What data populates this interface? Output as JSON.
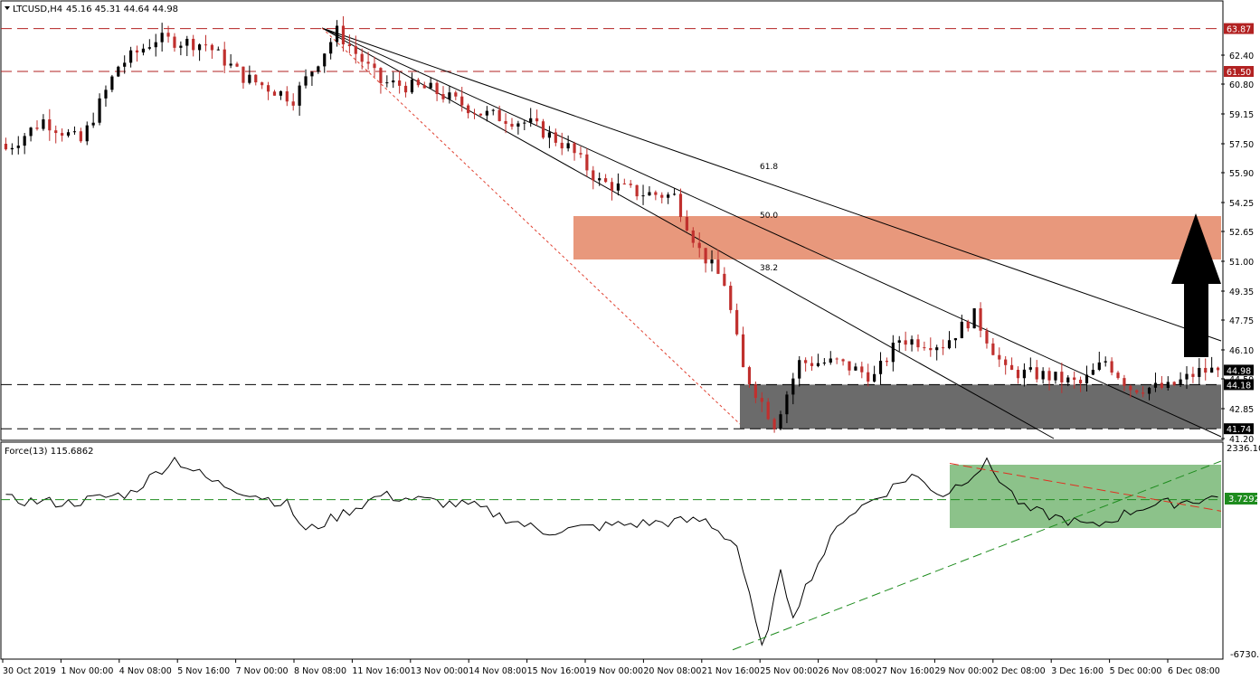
{
  "header": {
    "symbol_label": "LTCUSD,H4",
    "ohlc_label": "45.16 45.31 44.64 44.98"
  },
  "indicator": {
    "label": "Force(13) 115.6862",
    "axis_max_label": "2336.102",
    "axis_min_label": "-6730.05",
    "level_label": "3.7292"
  },
  "colors": {
    "bull_candle": "#000000",
    "bear_candle": "#c0302e",
    "resistance_zone": "#e8987c",
    "support_zone": "#6b6b6b",
    "force_zone": "#8cc28a",
    "price_label_red": "#b22222",
    "level_dash": "#000000",
    "force_trend_up": "#1e8c1e",
    "force_trend_down": "#e03020",
    "arrow": "#000000"
  },
  "chart_data": [
    {
      "type": "candlestick",
      "title": "LTCUSD,H4",
      "ylim": [
        41.2,
        64.55
      ],
      "y_ticks": [
        "62.40",
        "60.80",
        "59.15",
        "57.50",
        "55.90",
        "54.25",
        "52.65",
        "51.00",
        "49.35",
        "47.75",
        "46.10",
        "44.50",
        "42.85",
        "41.20"
      ],
      "x_ticks": [
        "30 Oct 2019",
        "1 Nov 00:00",
        "4 Nov 08:00",
        "5 Nov 16:00",
        "7 Nov 00:00",
        "8 Nov 08:00",
        "11 Nov 16:00",
        "13 Nov 00:00",
        "14 Nov 08:00",
        "15 Nov 16:00",
        "19 Nov 00:00",
        "20 Nov 08:00",
        "21 Nov 16:00",
        "25 Nov 00:00",
        "26 Nov 08:00",
        "27 Nov 16:00",
        "29 Nov 00:00",
        "2 Dec 08:00",
        "3 Dec 16:00",
        "5 Dec 00:00",
        "6 Dec 08:00"
      ],
      "horizontal_levels": [
        {
          "label": "63.87",
          "value": 63.87,
          "style": "red-dash"
        },
        {
          "label": "61.50",
          "value": 61.5,
          "style": "red-dash"
        },
        {
          "label": "44.18",
          "value": 44.18,
          "style": "black-dash"
        },
        {
          "label": "41.74",
          "value": 41.74,
          "style": "black-dash"
        }
      ],
      "current_price_label": "44.98",
      "zones": [
        {
          "name": "resistance",
          "y_from": 51.1,
          "y_to": 53.5
        },
        {
          "name": "support",
          "y_from": 41.74,
          "y_to": 44.18
        }
      ],
      "fibonacci_fan": {
        "levels": [
          "61.8",
          "50.0",
          "38.2"
        ]
      },
      "ohlc_key_points": [
        {
          "bar": 0,
          "close": 57.2
        },
        {
          "bar": 6,
          "close": 58.8
        },
        {
          "bar": 12,
          "close": 57.6
        },
        {
          "bar": 18,
          "close": 61.8
        },
        {
          "bar": 24,
          "close": 63.3
        },
        {
          "bar": 32,
          "close": 63.0
        },
        {
          "bar": 38,
          "close": 61.2
        },
        {
          "bar": 46,
          "close": 60.0
        },
        {
          "bar": 53,
          "close": 63.7
        },
        {
          "bar": 60,
          "close": 60.9
        },
        {
          "bar": 68,
          "close": 60.5
        },
        {
          "bar": 76,
          "close": 59.2
        },
        {
          "bar": 84,
          "close": 58.6
        },
        {
          "bar": 90,
          "close": 57.3
        },
        {
          "bar": 95,
          "close": 55.4
        },
        {
          "bar": 101,
          "close": 54.8
        },
        {
          "bar": 107,
          "close": 54.6
        },
        {
          "bar": 111,
          "close": 51.6
        },
        {
          "bar": 115,
          "close": 49.8
        },
        {
          "bar": 118,
          "close": 45.0
        },
        {
          "bar": 123,
          "close": 42.0
        },
        {
          "bar": 127,
          "close": 45.4
        },
        {
          "bar": 133,
          "close": 45.4
        },
        {
          "bar": 139,
          "close": 44.6
        },
        {
          "bar": 143,
          "close": 46.7
        },
        {
          "bar": 150,
          "close": 46.4
        },
        {
          "bar": 155,
          "close": 48.0
        },
        {
          "bar": 160,
          "close": 44.9
        },
        {
          "bar": 166,
          "close": 44.7
        },
        {
          "bar": 172,
          "close": 44.2
        },
        {
          "bar": 176,
          "close": 45.5
        },
        {
          "bar": 180,
          "close": 44.0
        },
        {
          "bar": 186,
          "close": 44.0
        },
        {
          "bar": 191,
          "close": 44.9
        },
        {
          "bar": 194,
          "close": 44.98
        }
      ]
    },
    {
      "type": "line",
      "title": "Force(13) 115.6862",
      "ylim": [
        -6730.05,
        2336.102
      ],
      "level": 3.7292,
      "y_ticks": [
        "2336.102",
        "-6730.05"
      ],
      "key_points": [
        {
          "bar": 0,
          "value": 0
        },
        {
          "bar": 10,
          "value": -150
        },
        {
          "bar": 20,
          "value": 300
        },
        {
          "bar": 27,
          "value": 1800
        },
        {
          "bar": 33,
          "value": 800
        },
        {
          "bar": 45,
          "value": -200
        },
        {
          "bar": 48,
          "value": -1400
        },
        {
          "bar": 60,
          "value": 200
        },
        {
          "bar": 75,
          "value": -300
        },
        {
          "bar": 86,
          "value": -1400
        },
        {
          "bar": 98,
          "value": -1100
        },
        {
          "bar": 112,
          "value": -900
        },
        {
          "bar": 117,
          "value": -2000
        },
        {
          "bar": 121,
          "value": -6600
        },
        {
          "bar": 124,
          "value": -3300
        },
        {
          "bar": 126,
          "value": -5000
        },
        {
          "bar": 129,
          "value": -3300
        },
        {
          "bar": 134,
          "value": -800
        },
        {
          "bar": 140,
          "value": 200
        },
        {
          "bar": 145,
          "value": 1100
        },
        {
          "bar": 150,
          "value": 200
        },
        {
          "bar": 157,
          "value": 1600
        },
        {
          "bar": 163,
          "value": -400
        },
        {
          "bar": 174,
          "value": -1200
        },
        {
          "bar": 182,
          "value": -300
        },
        {
          "bar": 194,
          "value": 115.6862
        }
      ]
    }
  ]
}
